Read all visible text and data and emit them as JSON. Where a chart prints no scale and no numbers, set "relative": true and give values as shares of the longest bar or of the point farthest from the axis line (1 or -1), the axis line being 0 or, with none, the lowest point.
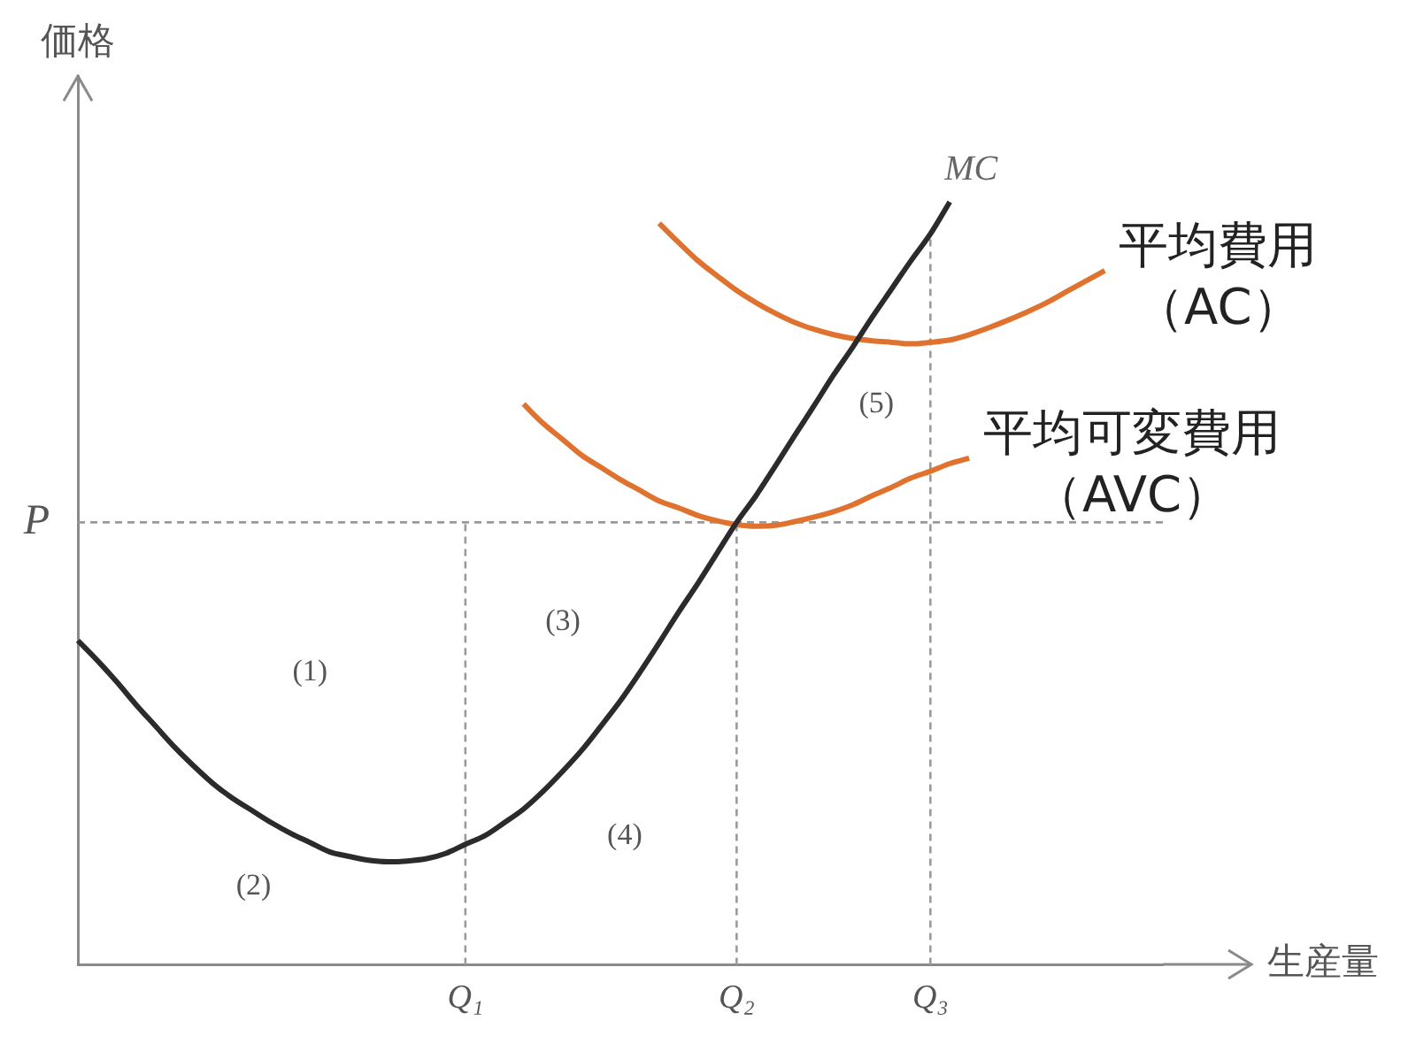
{
  "chart_data": {
    "type": "line",
    "xlabel": "生産量",
    "ylabel": "価格",
    "relative": true,
    "categories": [
      null,
      null,
      null,
      null,
      null,
      null,
      null,
      null,
      null,
      null,
      null,
      null,
      null,
      null,
      null,
      null,
      null,
      null,
      null,
      null,
      "Q₁",
      null,
      null,
      null,
      null,
      null,
      null,
      null,
      null,
      null,
      null,
      null,
      null,
      null,
      "Q₂",
      null,
      null,
      null,
      null,
      null,
      null,
      null,
      null,
      null,
      "Q₃",
      null,
      null,
      null,
      null,
      null,
      null,
      null,
      null,
      null,
      null,
      null,
      null
    ],
    "series": [
      {
        "name": "MC",
        "color": "#2b2b2b",
        "values": [
          0.425,
          0.399,
          0.371,
          0.341,
          0.313,
          0.285,
          0.26,
          0.237,
          0.218,
          0.202,
          0.186,
          0.172,
          0.16,
          0.148,
          0.142,
          0.137,
          0.135,
          0.136,
          0.139,
          0.146,
          0.158,
          0.169,
          0.186,
          0.204,
          0.227,
          0.253,
          0.281,
          0.313,
          0.346,
          0.383,
          0.422,
          0.462,
          0.5,
          0.54,
          0.58,
          0.615,
          0.654,
          0.694,
          0.733,
          0.773,
          0.81,
          0.849,
          0.886,
          0.923,
          0.958,
          1,
          null,
          null,
          null,
          null,
          null,
          null,
          null,
          null,
          null,
          null,
          null
        ]
      },
      {
        "name": "平均費用（AC）",
        "color": "#e07230",
        "values": [
          null,
          null,
          null,
          null,
          null,
          null,
          null,
          null,
          null,
          null,
          null,
          null,
          null,
          null,
          null,
          null,
          null,
          null,
          null,
          null,
          null,
          null,
          null,
          null,
          null,
          null,
          null,
          null,
          null,
          null,
          0.972,
          0.947,
          0.923,
          0.903,
          0.884,
          0.868,
          0.854,
          0.842,
          0.833,
          0.826,
          0.821,
          0.818,
          0.816,
          0.814,
          0.816,
          0.819,
          0.826,
          0.835,
          0.845,
          0.856,
          0.868,
          0.882,
          0.896,
          0.91,
          null,
          null,
          null
        ]
      },
      {
        "name": "平均可変費用（AVC）",
        "color": "#e07230",
        "values": [
          null,
          null,
          null,
          null,
          null,
          null,
          null,
          null,
          null,
          null,
          null,
          null,
          null,
          null,
          null,
          null,
          null,
          null,
          null,
          null,
          null,
          null,
          null,
          0.735,
          0.71,
          0.689,
          0.668,
          0.652,
          0.636,
          0.622,
          0.608,
          0.599,
          0.589,
          0.582,
          0.577,
          0.575,
          0.576,
          0.581,
          0.587,
          0.594,
          0.603,
          0.615,
          0.626,
          0.638,
          0.647,
          0.657,
          0.664,
          null,
          null,
          null,
          null,
          null,
          null,
          null,
          null,
          null,
          null
        ]
      }
    ],
    "ref_lines": [
      {
        "axis": "y",
        "value": 0.58,
        "label": "P",
        "color": "#9a9a9a",
        "line_style": "dashed"
      },
      {
        "axis": "x",
        "value": "Q₁",
        "color": "#9a9a9a",
        "line_style": "dashed"
      },
      {
        "axis": "x",
        "value": "Q₂",
        "color": "#9a9a9a",
        "line_style": "dashed"
      },
      {
        "axis": "x",
        "value": "Q₃",
        "color": "#9a9a9a",
        "line_style": "dashed"
      }
    ],
    "annotations": [
      "(1)",
      "(2)",
      "(3)",
      "(4)",
      "(5)"
    ]
  }
}
